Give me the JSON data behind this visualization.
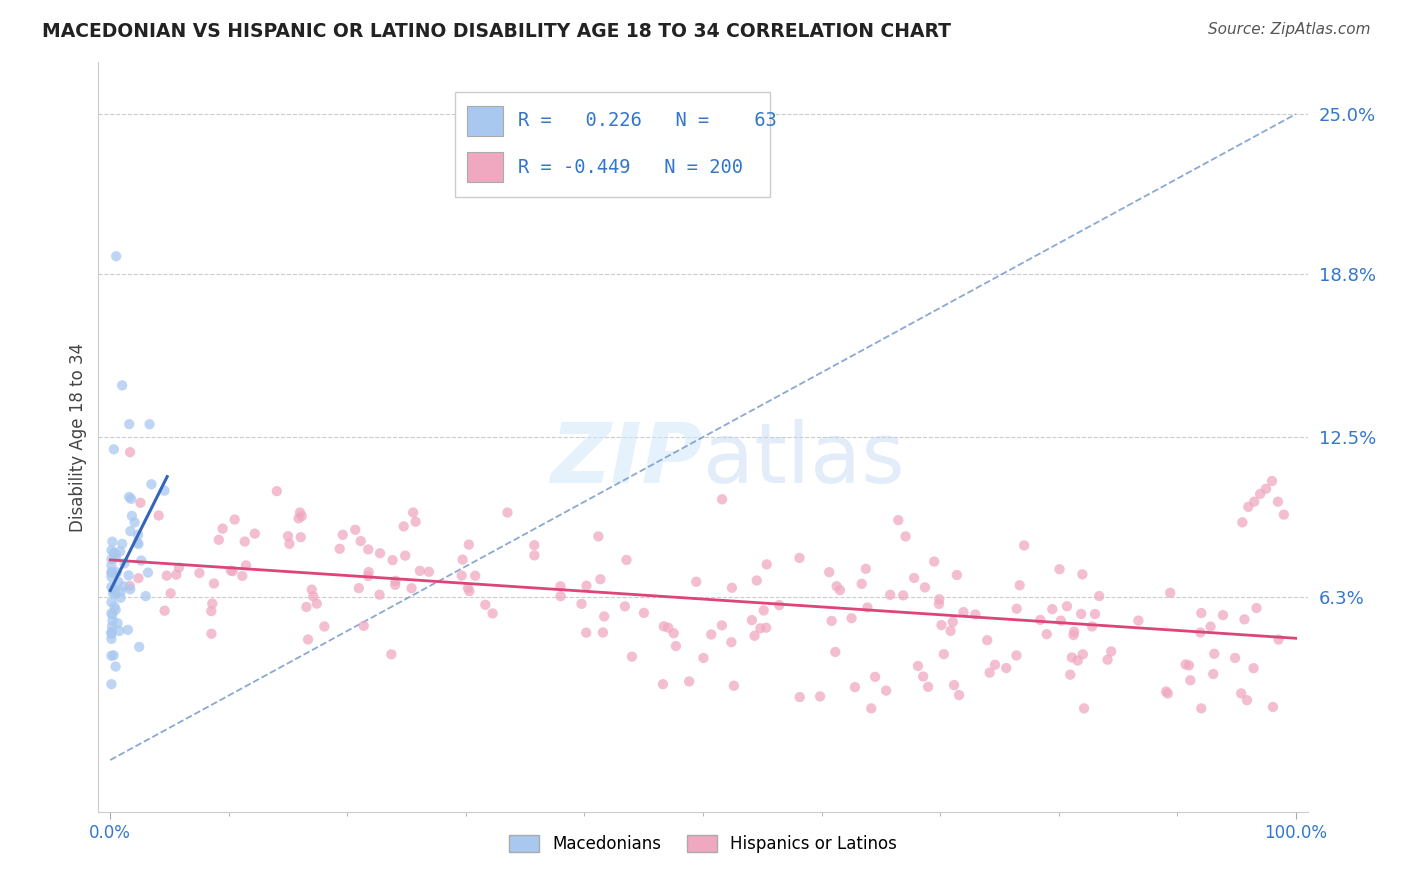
{
  "title": "MACEDONIAN VS HISPANIC OR LATINO DISABILITY AGE 18 TO 34 CORRELATION CHART",
  "source": "Source: ZipAtlas.com",
  "ylabel": "Disability Age 18 to 34",
  "xlim": [
    -0.01,
    1.01
  ],
  "ylim": [
    -0.02,
    0.27
  ],
  "y_tick_vals": [
    0.063,
    0.125,
    0.188,
    0.25
  ],
  "y_tick_labels": [
    "6.3%",
    "12.5%",
    "18.8%",
    "25.0%"
  ],
  "x_tick_labels": [
    "0.0%",
    "100.0%"
  ],
  "macedonian_color": "#a8c8f0",
  "hispanic_color": "#f0a8c0",
  "macedonian_line_color": "#3366bb",
  "hispanic_line_color": "#dd4477",
  "dashed_line_color": "#7799cc",
  "watermark_color": "#ddeeff",
  "R_macedonian": "0.226",
  "N_macedonian": "63",
  "R_hispanic": "-0.449",
  "N_hispanic": "200",
  "background_color": "#ffffff",
  "grid_color": "#cccccc",
  "title_color": "#222222",
  "axis_label_color": "#3377cc",
  "right_label_color": "#3377cc",
  "legend_text_color": "#3377cc",
  "source_color": "#555555"
}
